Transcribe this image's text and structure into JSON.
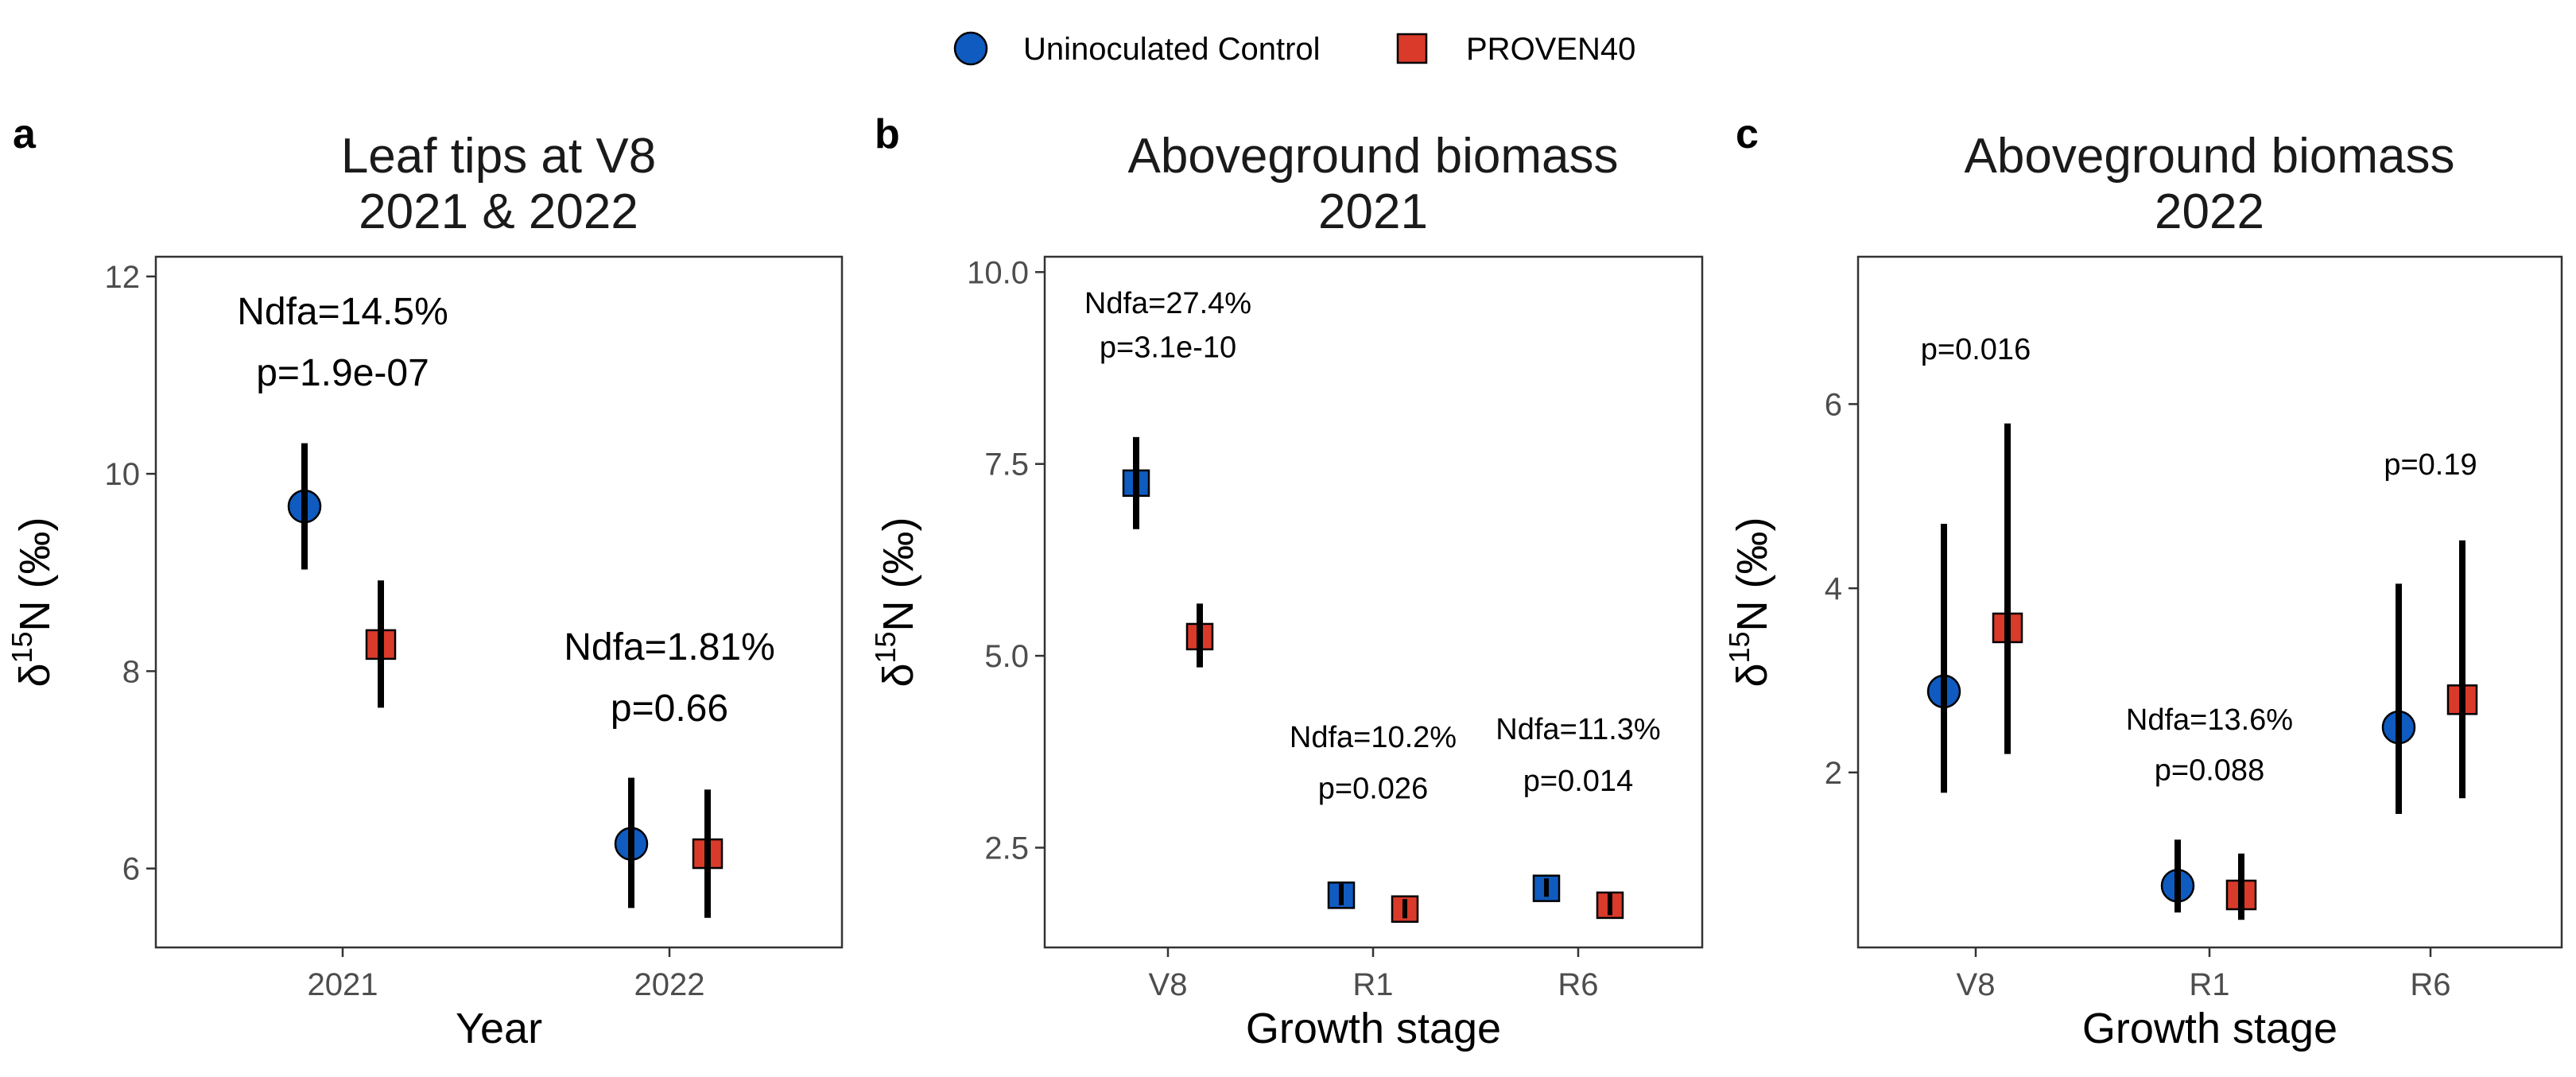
{
  "legend": {
    "position": "top",
    "items": [
      {
        "label": "Uninoculated Control",
        "color": "#0F5BBF",
        "shape": "circle"
      },
      {
        "label": "PROVEN40",
        "color": "#D93A2A",
        "shape": "square"
      }
    ]
  },
  "chart_data": [
    {
      "type": "scatter",
      "panel_label": "a",
      "title": [
        "Leaf tips at V8",
        "2021 & 2022"
      ],
      "xlabel": "Year",
      "ylabel": {
        "prefix": "δ",
        "sup": "15",
        "suffix": "N (‰)"
      },
      "categories": [
        "2021",
        "2022"
      ],
      "ylim": [
        5.2,
        12.2
      ],
      "yticks": [
        6,
        8,
        10,
        12
      ],
      "series": [
        {
          "name": "Uninoculated Control",
          "values": [
            9.67,
            6.25
          ],
          "lower": [
            9.03,
            5.6
          ],
          "upper": [
            10.31,
            6.92
          ]
        },
        {
          "name": "PROVEN40",
          "values": [
            8.27,
            6.15
          ],
          "lower": [
            7.63,
            5.5
          ],
          "upper": [
            8.92,
            6.8
          ]
        }
      ],
      "annotations": [
        {
          "category": 0,
          "y": 11.65,
          "text": "Ndfa=14.5%"
        },
        {
          "category": 0,
          "y": 11.03,
          "text": "p=1.9e-07"
        },
        {
          "category": 1,
          "y": 8.25,
          "text": "Ndfa=1.81%"
        },
        {
          "category": 1,
          "y": 7.63,
          "text": "p=0.66"
        }
      ]
    },
    {
      "type": "scatter",
      "panel_label": "b",
      "title": [
        "Aboveground biomass",
        "2021"
      ],
      "xlabel": "Growth stage",
      "ylabel": {
        "prefix": "δ",
        "sup": "15",
        "suffix": "N (‰)"
      },
      "categories": [
        "V8",
        "R1",
        "R6"
      ],
      "ylim": [
        1.2,
        10.2
      ],
      "yticks": [
        2.5,
        5.0,
        7.5,
        10.0
      ],
      "series": [
        {
          "name": "Uninoculated Control",
          "values": [
            7.25,
            1.88,
            1.97
          ],
          "lower": [
            6.65,
            1.75,
            1.86
          ],
          "upper": [
            7.85,
            2.03,
            2.1
          ]
        },
        {
          "name": "PROVEN40",
          "values": [
            5.25,
            1.7,
            1.75
          ],
          "lower": [
            4.85,
            1.58,
            1.62
          ],
          "upper": [
            5.68,
            1.83,
            1.92
          ]
        }
      ],
      "annotations": [
        {
          "category": 0,
          "y": 9.6,
          "text": "Ndfa=27.4%"
        },
        {
          "category": 0,
          "y": 9.03,
          "text": "p=3.1e-10"
        },
        {
          "category": 1,
          "y": 3.95,
          "text": "Ndfa=10.2%"
        },
        {
          "category": 1,
          "y": 3.28,
          "text": "p=0.026"
        },
        {
          "category": 2,
          "y": 4.05,
          "text": "Ndfa=11.3%"
        },
        {
          "category": 2,
          "y": 3.38,
          "text": "p=0.014"
        }
      ]
    },
    {
      "type": "scatter",
      "panel_label": "c",
      "title": [
        "Aboveground biomass",
        "2022"
      ],
      "xlabel": "Growth stage",
      "ylabel": {
        "prefix": "δ",
        "sup": "15",
        "suffix": "N (‰)"
      },
      "categories": [
        "V8",
        "R1",
        "R6"
      ],
      "ylim": [
        0.1,
        7.6
      ],
      "yticks": [
        2,
        4,
        6
      ],
      "series": [
        {
          "name": "Uninoculated Control",
          "values": [
            2.88,
            0.77,
            2.49
          ],
          "lower": [
            1.78,
            0.48,
            1.55
          ],
          "upper": [
            4.7,
            1.27,
            4.05
          ]
        },
        {
          "name": "PROVEN40",
          "values": [
            3.57,
            0.67,
            2.79
          ],
          "lower": [
            2.2,
            0.4,
            1.72
          ],
          "upper": [
            5.79,
            1.12,
            4.52
          ]
        }
      ],
      "annotations": [
        {
          "category": 0,
          "y": 6.6,
          "text": "p=0.016"
        },
        {
          "category": 1,
          "y": 2.58,
          "text": "Ndfa=13.6%"
        },
        {
          "category": 1,
          "y": 2.03,
          "text": "p=0.088"
        },
        {
          "category": 2,
          "y": 5.35,
          "text": "p=0.19"
        }
      ]
    }
  ]
}
